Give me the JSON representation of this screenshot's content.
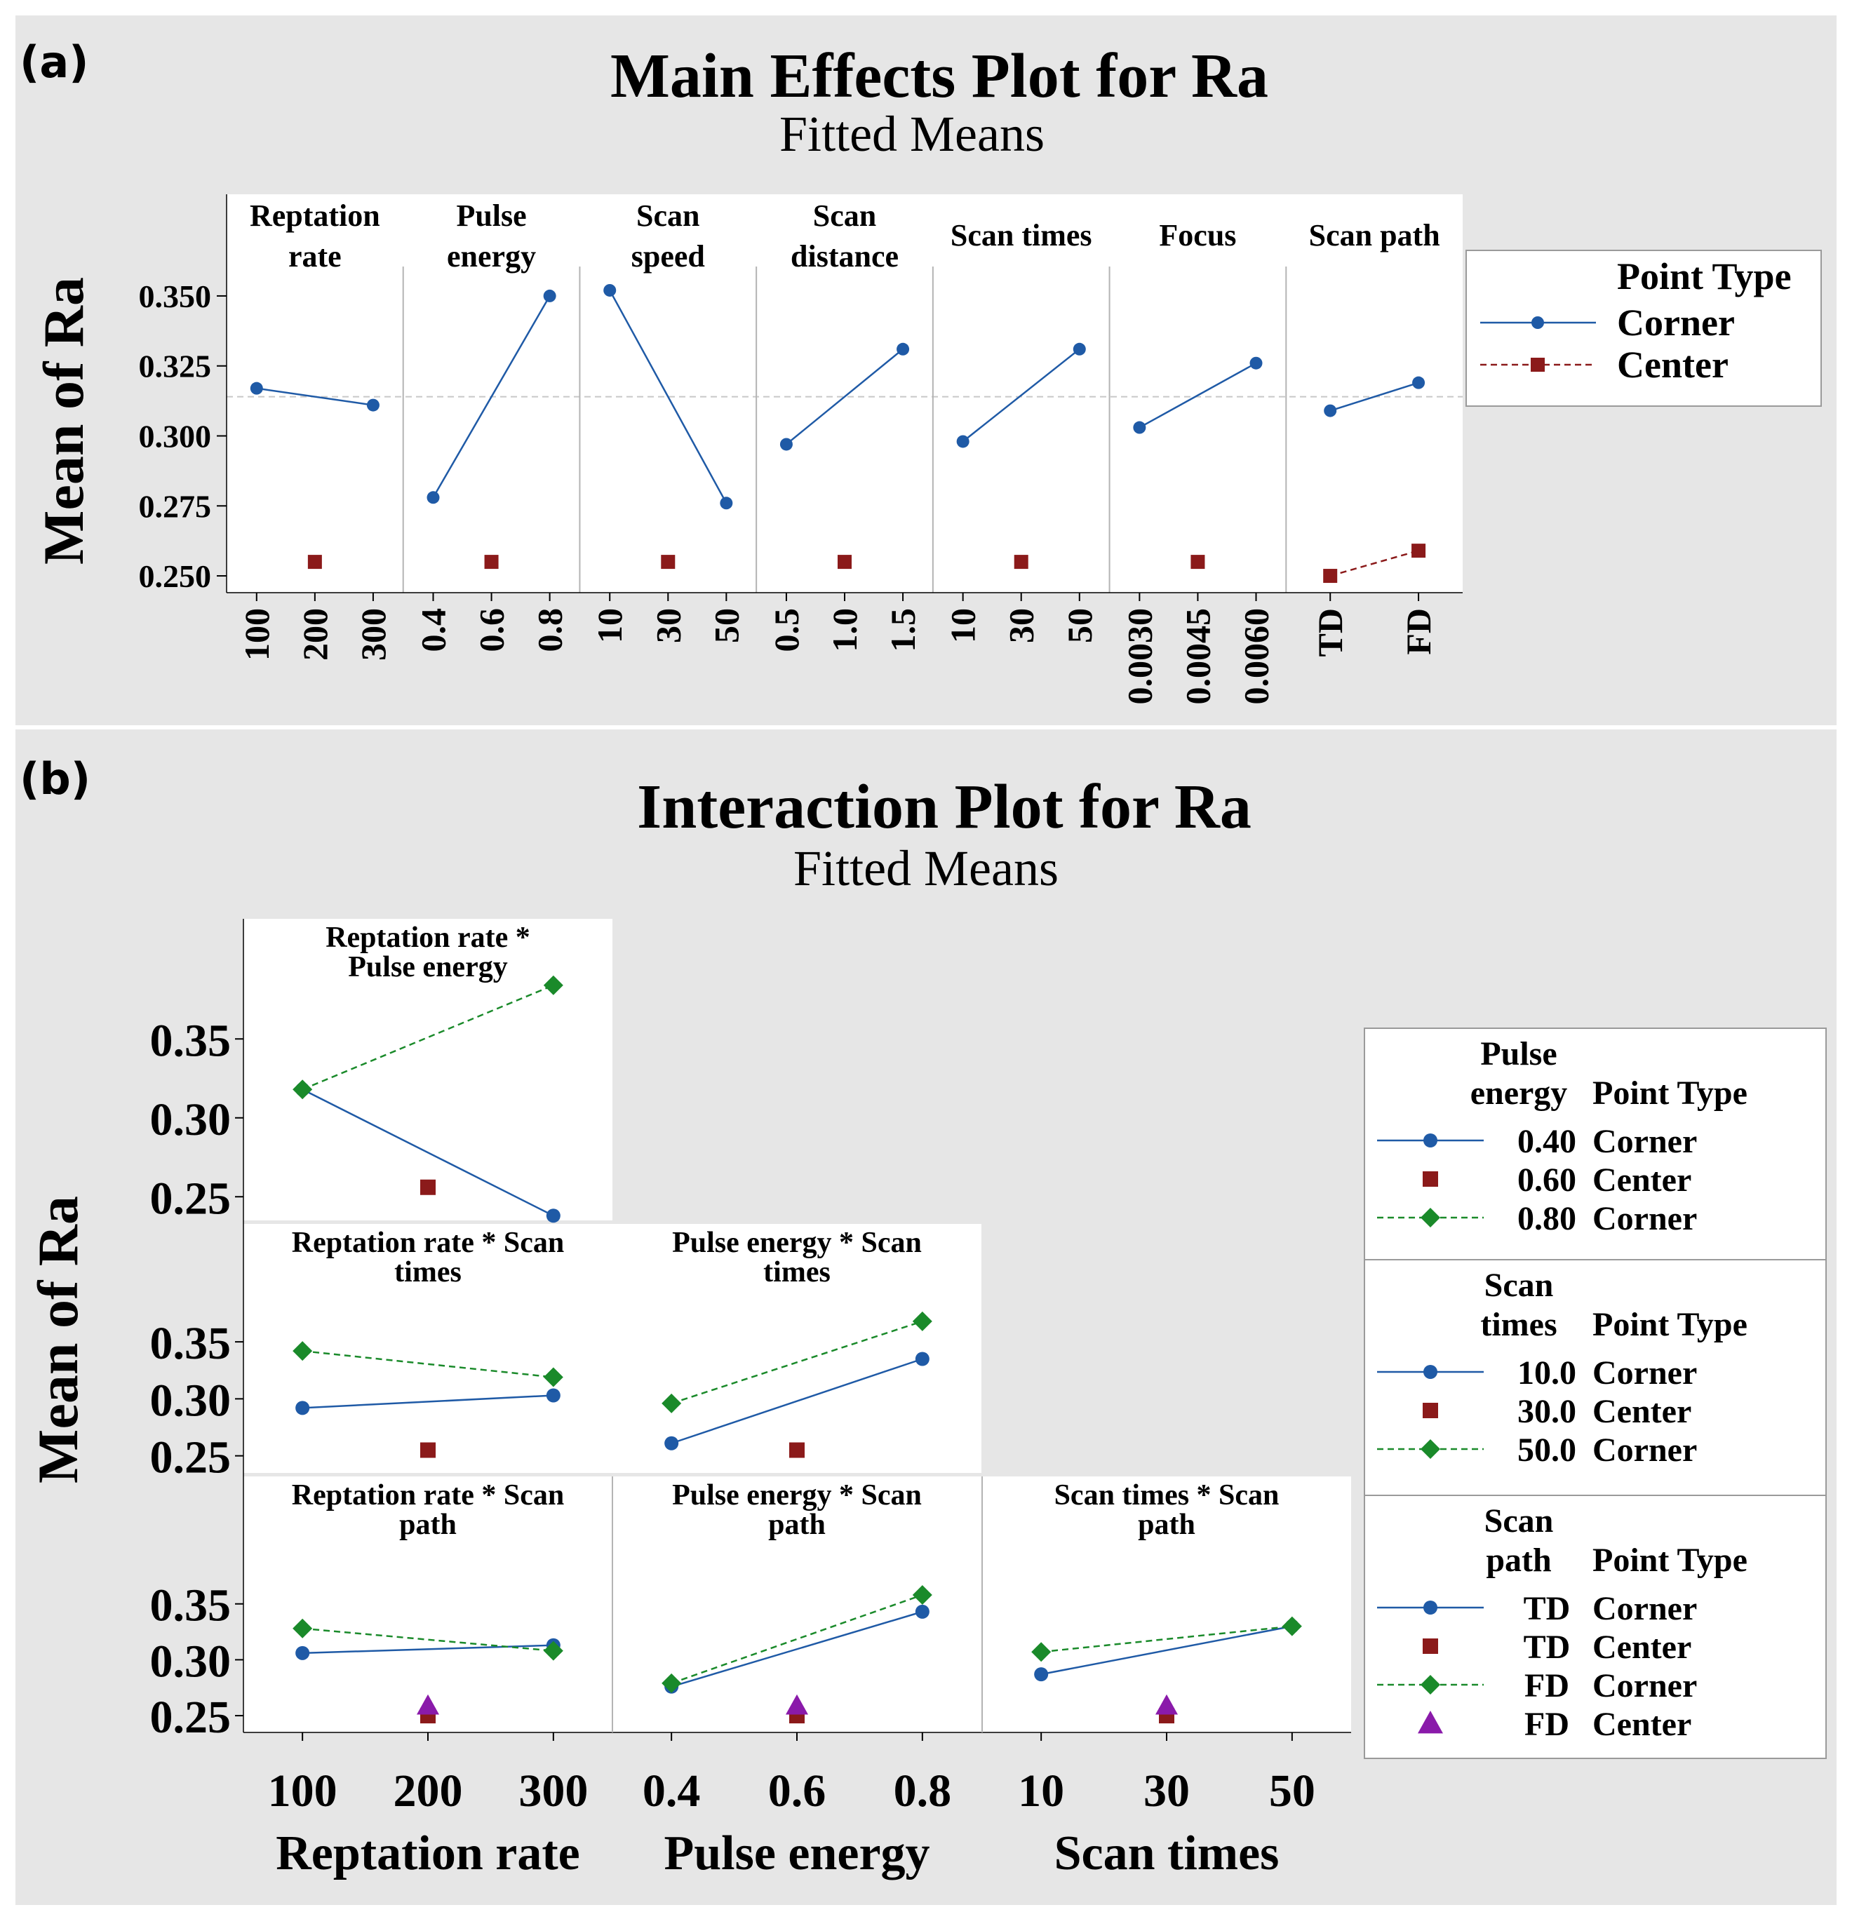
{
  "colors": {
    "background_outer": "#ffffff",
    "panel_bg": "#e6e6e6",
    "plot_bg": "#ffffff",
    "corner_series": "#1f5aa6",
    "center_series": "#8b1a1a",
    "fd_corner_series": "#1a8a2a",
    "fd_center_series": "#8a1aaa",
    "divider": "#b4b4b4",
    "text": "#000000"
  },
  "panel_a": {
    "label": "(a)",
    "title": "Main Effects Plot for Ra",
    "subtitle": "Fitted Means",
    "ylabel": "Mean of Ra",
    "yticks": [
      "0.350",
      "0.325",
      "0.300",
      "0.275",
      "0.250"
    ],
    "legend": {
      "title": "Point Type",
      "items": [
        {
          "label": "Corner",
          "icon": "circle-line-icon"
        },
        {
          "label": "Center",
          "icon": "square-dashed-icon"
        }
      ]
    }
  },
  "panel_b": {
    "label": "(b)",
    "title": "Interaction Plot for Ra",
    "subtitle": "Fitted Means",
    "ylabel": "Mean of Ra",
    "xlabels": [
      "Reptation rate",
      "Pulse energy",
      "Scan times"
    ],
    "legends": [
      {
        "header_factor": [
          "Pulse",
          "energy"
        ],
        "header_type": "Point Type",
        "rows": [
          {
            "level": "0.40",
            "type": "Corner",
            "icon": "circle-line-icon"
          },
          {
            "level": "0.60",
            "type": "Center",
            "icon": "square-icon"
          },
          {
            "level": "0.80",
            "type": "Corner",
            "icon": "diamond-dashed-icon"
          }
        ]
      },
      {
        "header_factor": [
          "Scan",
          "times"
        ],
        "header_type": "Point Type",
        "rows": [
          {
            "level": "10.0",
            "type": "Corner",
            "icon": "circle-line-icon"
          },
          {
            "level": "30.0",
            "type": "Center",
            "icon": "square-icon"
          },
          {
            "level": "50.0",
            "type": "Corner",
            "icon": "diamond-dashed-icon"
          }
        ]
      },
      {
        "header_factor": [
          "Scan",
          "path"
        ],
        "header_type": "Point Type",
        "rows": [
          {
            "level": "TD",
            "type": "Corner",
            "icon": "circle-line-icon"
          },
          {
            "level": "TD",
            "type": "Center",
            "icon": "square-icon"
          },
          {
            "level": "FD",
            "type": "Corner",
            "icon": "diamond-dashed-icon"
          },
          {
            "level": "FD",
            "type": "Center",
            "icon": "triangle-icon"
          }
        ]
      }
    ]
  },
  "chart_data": [
    {
      "type": "line",
      "title": "Main Effects Plot for Ra",
      "subtitle": "Fitted Means",
      "ylabel": "Mean of Ra",
      "ylim": [
        0.244,
        0.358
      ],
      "reference_line": 0.314,
      "facets": [
        {
          "name": [
            "Reptation",
            "rate"
          ],
          "levels": [
            "100",
            "200",
            "300"
          ],
          "corner": [
            0.317,
            null,
            0.311
          ],
          "center": [
            null,
            0.255,
            null
          ]
        },
        {
          "name": [
            "Pulse",
            "energy"
          ],
          "levels": [
            "0.4",
            "0.6",
            "0.8"
          ],
          "corner": [
            0.278,
            null,
            0.35
          ],
          "center": [
            null,
            0.255,
            null
          ]
        },
        {
          "name": [
            "Scan",
            "speed"
          ],
          "levels": [
            "10",
            "30",
            "50"
          ],
          "corner": [
            0.352,
            null,
            0.276
          ],
          "center": [
            null,
            0.255,
            null
          ]
        },
        {
          "name": [
            "Scan",
            "distance"
          ],
          "levels": [
            "0.5",
            "1.0",
            "1.5"
          ],
          "corner": [
            0.297,
            null,
            0.331
          ],
          "center": [
            null,
            0.255,
            null
          ]
        },
        {
          "name": [
            "Scan times"
          ],
          "levels": [
            "10",
            "30",
            "50"
          ],
          "corner": [
            0.298,
            null,
            0.331
          ],
          "center": [
            null,
            0.255,
            null
          ]
        },
        {
          "name": [
            "Focus"
          ],
          "levels": [
            "0.0030",
            "0.0045",
            "0.0060"
          ],
          "corner": [
            0.303,
            null,
            0.326
          ],
          "center": [
            null,
            0.255,
            null
          ]
        },
        {
          "name": [
            "Scan path"
          ],
          "levels": [
            "TD",
            "FD"
          ],
          "corner": [
            0.309,
            0.319
          ],
          "center": [
            0.25,
            0.259
          ]
        }
      ]
    },
    {
      "type": "line",
      "title": "Interaction Plot for Ra",
      "subtitle": "Fitted Means",
      "ylabel": "Mean of Ra",
      "ylim": [
        0.235,
        0.395
      ],
      "yticks": [
        "0.35",
        "0.30",
        "0.25"
      ],
      "x_factors": [
        {
          "name": "Reptation rate",
          "levels": [
            "100",
            "200",
            "300"
          ]
        },
        {
          "name": "Pulse energy",
          "levels": [
            "0.4",
            "0.6",
            "0.8"
          ]
        },
        {
          "name": "Scan times",
          "levels": [
            "10",
            "30",
            "50"
          ]
        }
      ],
      "cells": [
        {
          "title": [
            "Reptation rate *",
            "Pulse energy"
          ],
          "row": 0,
          "col": 0,
          "corner_low": [
            0.318,
            null,
            0.238
          ],
          "corner_high": [
            0.318,
            null,
            0.384
          ],
          "center": [
            null,
            0.256,
            null
          ]
        },
        {
          "title": [
            "Reptation rate * Scan",
            "times"
          ],
          "row": 1,
          "col": 0,
          "corner_low": [
            0.292,
            null,
            0.303
          ],
          "corner_high": [
            0.342,
            null,
            0.319
          ],
          "center": [
            null,
            0.255,
            null
          ]
        },
        {
          "title": [
            "Pulse energy * Scan",
            "times"
          ],
          "row": 1,
          "col": 1,
          "corner_low": [
            0.261,
            null,
            0.335
          ],
          "corner_high": [
            0.296,
            null,
            0.368
          ],
          "center": [
            null,
            0.255,
            null
          ]
        },
        {
          "title": [
            "Reptation rate * Scan",
            "path"
          ],
          "row": 2,
          "col": 0,
          "corner_low": [
            0.306,
            null,
            0.313
          ],
          "corner_high": [
            0.328,
            null,
            0.308
          ],
          "center": [
            null,
            0.25,
            null
          ],
          "center_high": [
            null,
            0.259,
            null
          ]
        },
        {
          "title": [
            "Pulse energy * Scan",
            "path"
          ],
          "row": 2,
          "col": 1,
          "corner_low": [
            0.276,
            null,
            0.343
          ],
          "corner_high": [
            0.279,
            null,
            0.358
          ],
          "center": [
            null,
            0.25,
            null
          ],
          "center_high": [
            null,
            0.259,
            null
          ]
        },
        {
          "title": [
            "Scan times * Scan",
            "path"
          ],
          "row": 2,
          "col": 2,
          "corner_low": [
            0.287,
            null,
            0.33
          ],
          "corner_high": [
            0.307,
            null,
            0.33
          ],
          "center": [
            null,
            0.25,
            null
          ],
          "center_high": [
            null,
            0.259,
            null
          ]
        }
      ]
    }
  ]
}
